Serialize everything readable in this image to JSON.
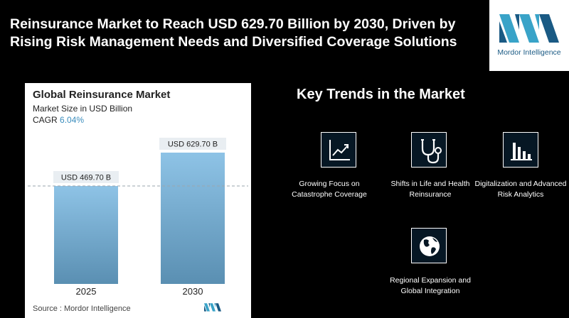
{
  "headline": "Reinsurance Market to Reach USD 629.70 Billion by 2030, Driven by Rising Risk Management Needs and Diversified Coverage Solutions",
  "brand": {
    "name": "Mordor Intelligence",
    "color": "#1a5a84",
    "accent": "#39a3c8"
  },
  "chart": {
    "title": "Global Reinsurance Market",
    "subtitle": "Market Size in USD Billion",
    "cagr_label": "CAGR",
    "cagr_value": "6.04%",
    "source": "Source :  Mordor Intelligence"
  },
  "chart_data": {
    "type": "bar",
    "title": "Global Reinsurance Market",
    "ylabel": "Market Size in USD Billion",
    "categories": [
      "2025",
      "2030"
    ],
    "values": [
      469.7,
      629.7
    ],
    "data_labels": [
      "USD 469.70 B",
      "USD 629.70 B"
    ],
    "ylim": [
      0,
      629.7
    ],
    "grid": false,
    "colors": {
      "bar_top": "#8ec3e6",
      "bar_bottom": "#5a8fb2"
    }
  },
  "trends": {
    "title": "Key Trends in the Market",
    "items": [
      {
        "icon": "line-chart-icon",
        "label": "Growing Focus on Catastrophe Coverage"
      },
      {
        "icon": "stethoscope-icon",
        "label": "Shifts in Life and Health Reinsurance"
      },
      {
        "icon": "bar-chart-icon",
        "label": "Digitalization and Advanced Risk Analytics"
      },
      {
        "icon": "globe-icon",
        "label": "Regional Expansion and Global Integration"
      }
    ]
  }
}
